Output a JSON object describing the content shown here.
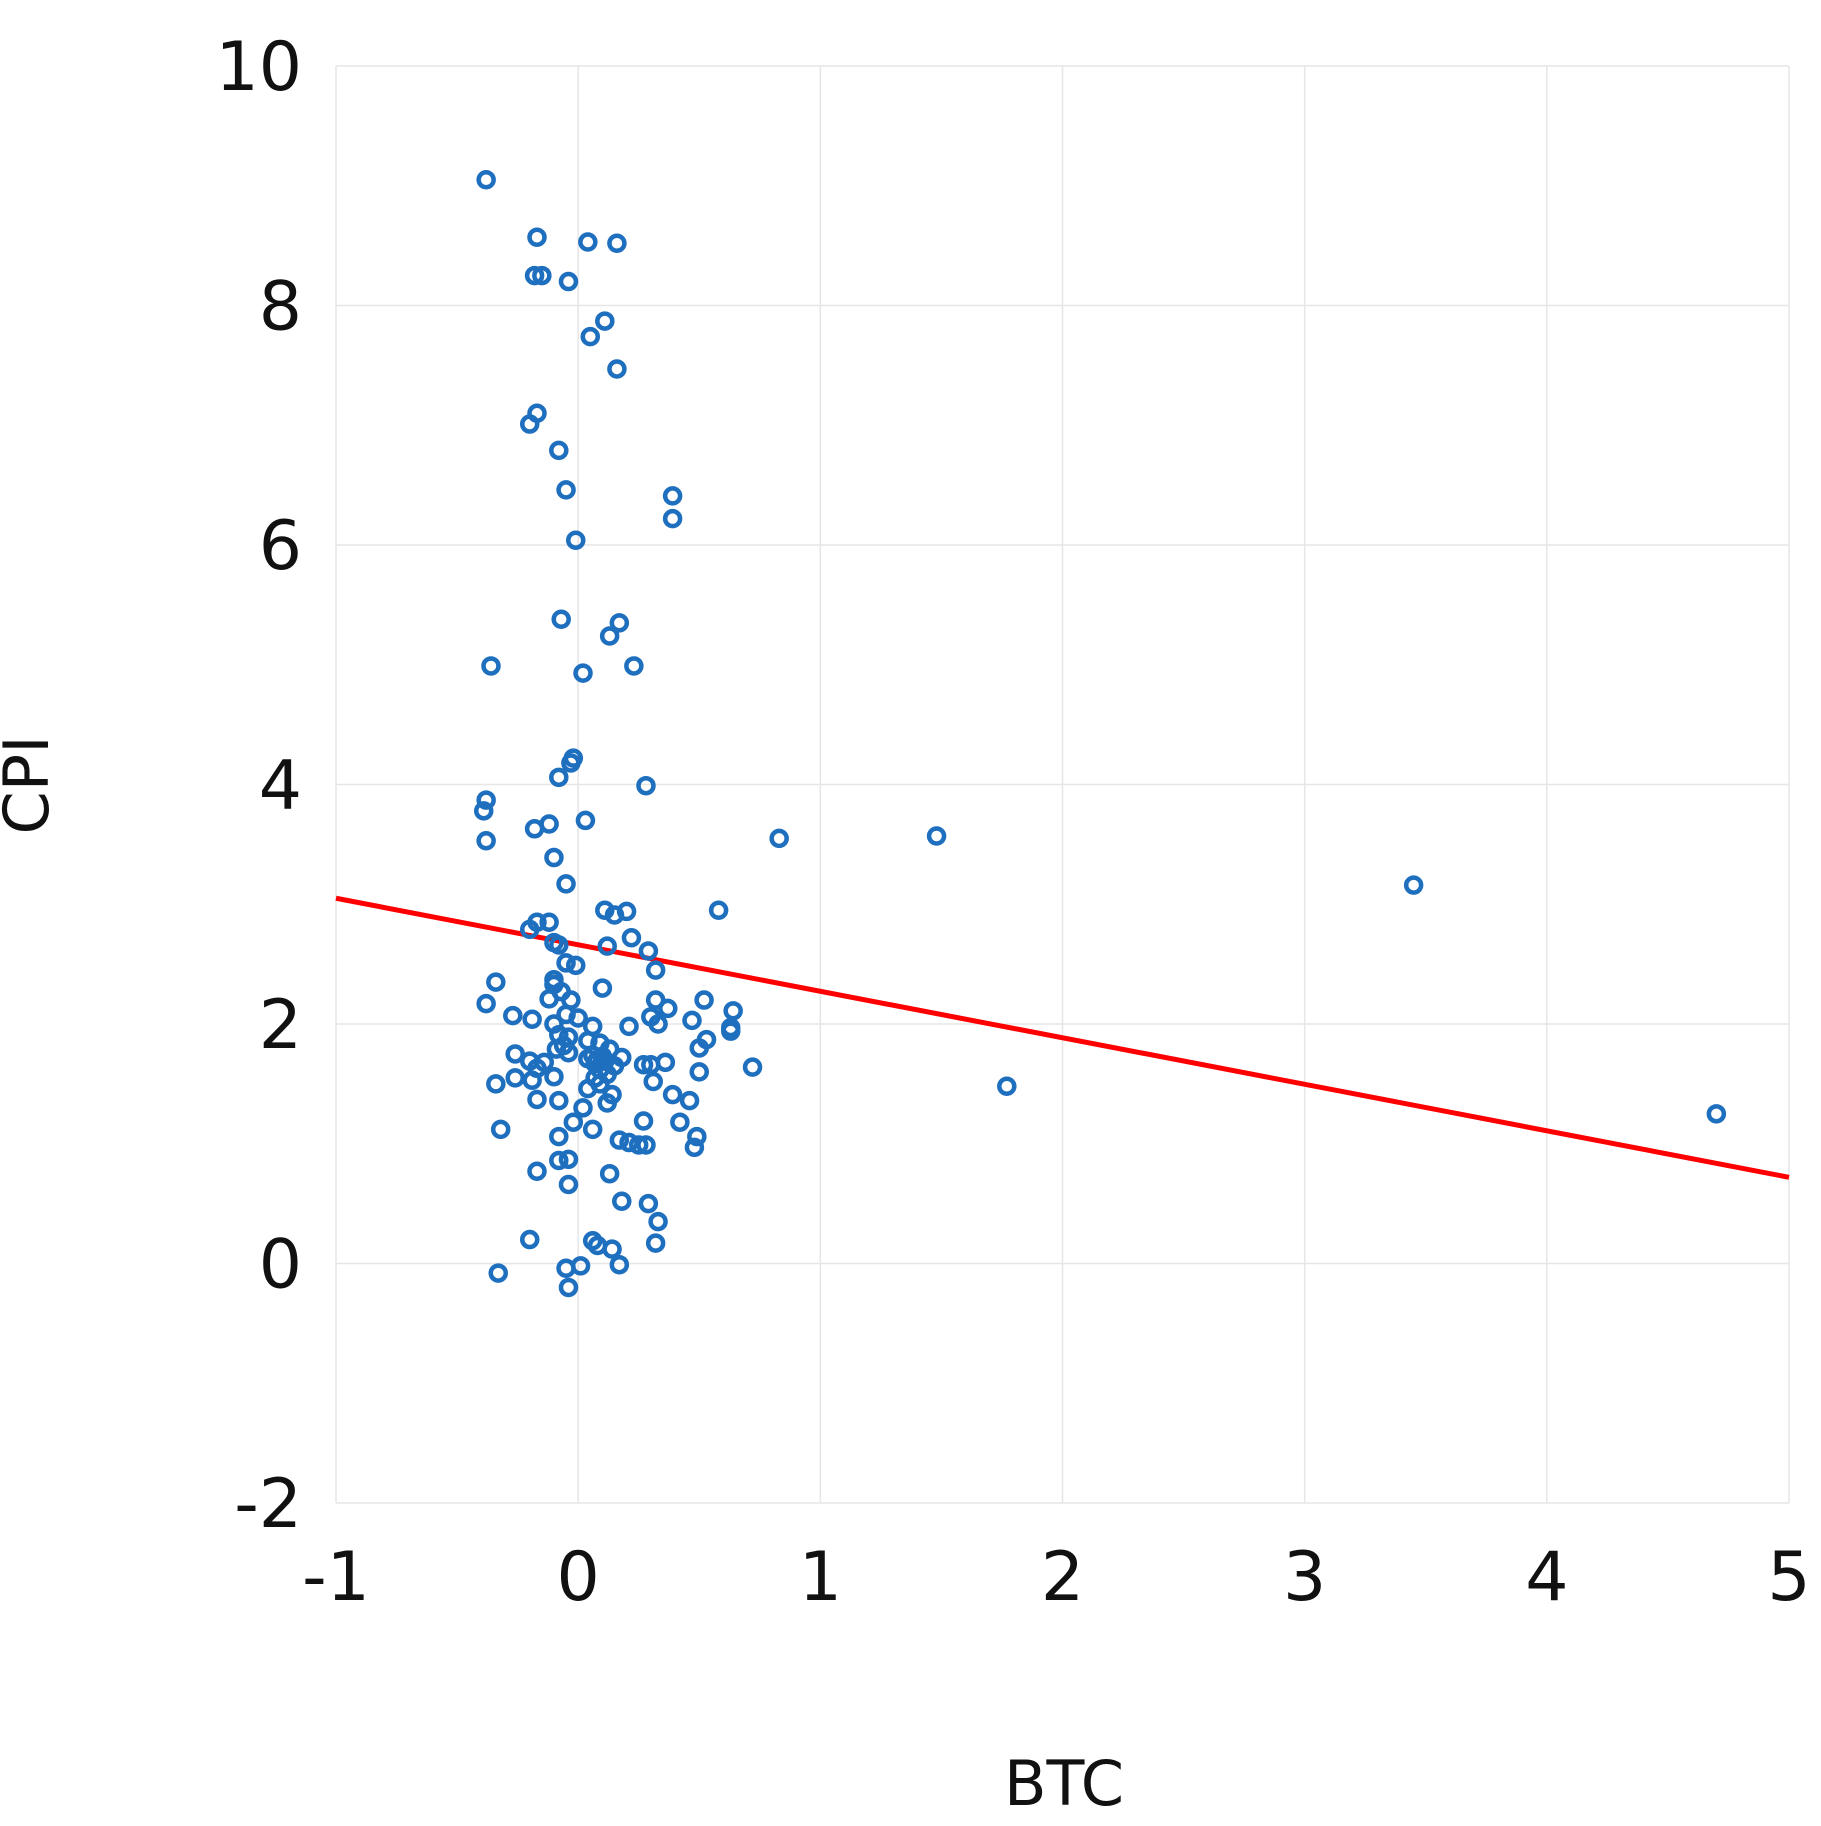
{
  "chart_data": {
    "type": "scatter",
    "title": "",
    "xlabel": "BTC",
    "ylabel": "CPI",
    "xlim": [
      -1,
      5
    ],
    "ylim": [
      -2,
      10
    ],
    "xticks": [
      -1,
      0,
      1,
      2,
      3,
      4,
      5
    ],
    "yticks": [
      -2,
      0,
      2,
      4,
      6,
      8,
      10
    ],
    "grid": true,
    "legend": "none",
    "colors": {
      "points": "#1F6FBF",
      "trend": "#FF0000",
      "grid": "#E6E6E6"
    },
    "points": [
      {
        "x": -0.38,
        "y": 9.05
      },
      {
        "x": -0.17,
        "y": 8.57
      },
      {
        "x": 0.04,
        "y": 8.53
      },
      {
        "x": 0.16,
        "y": 8.52
      },
      {
        "x": -0.18,
        "y": 8.25
      },
      {
        "x": -0.15,
        "y": 8.25
      },
      {
        "x": -0.04,
        "y": 8.2
      },
      {
        "x": 0.11,
        "y": 7.87
      },
      {
        "x": 0.05,
        "y": 7.74
      },
      {
        "x": 0.16,
        "y": 7.47
      },
      {
        "x": -0.17,
        "y": 7.1
      },
      {
        "x": -0.2,
        "y": 7.01
      },
      {
        "x": -0.08,
        "y": 6.79
      },
      {
        "x": -0.05,
        "y": 6.46
      },
      {
        "x": 0.39,
        "y": 6.41
      },
      {
        "x": 0.39,
        "y": 6.22
      },
      {
        "x": -0.01,
        "y": 6.04
      },
      {
        "x": -0.07,
        "y": 5.38
      },
      {
        "x": 0.17,
        "y": 5.35
      },
      {
        "x": 0.13,
        "y": 5.24
      },
      {
        "x": -0.36,
        "y": 4.99
      },
      {
        "x": 0.23,
        "y": 4.99
      },
      {
        "x": 0.02,
        "y": 4.93
      },
      {
        "x": -0.02,
        "y": 4.22
      },
      {
        "x": -0.03,
        "y": 4.18
      },
      {
        "x": -0.08,
        "y": 4.06
      },
      {
        "x": 0.28,
        "y": 3.99
      },
      {
        "x": -0.38,
        "y": 3.87
      },
      {
        "x": -0.39,
        "y": 3.78
      },
      {
        "x": 0.03,
        "y": 3.7
      },
      {
        "x": -0.12,
        "y": 3.67
      },
      {
        "x": -0.18,
        "y": 3.63
      },
      {
        "x": -0.38,
        "y": 3.53
      },
      {
        "x": 0.83,
        "y": 3.55
      },
      {
        "x": 1.48,
        "y": 3.57
      },
      {
        "x": -0.1,
        "y": 3.39
      },
      {
        "x": -0.05,
        "y": 3.17
      },
      {
        "x": 3.45,
        "y": 3.16
      },
      {
        "x": 0.58,
        "y": 2.95
      },
      {
        "x": 0.11,
        "y": 2.95
      },
      {
        "x": 0.2,
        "y": 2.94
      },
      {
        "x": 0.15,
        "y": 2.91
      },
      {
        "x": -0.17,
        "y": 2.85
      },
      {
        "x": -0.12,
        "y": 2.85
      },
      {
        "x": -0.2,
        "y": 2.79
      },
      {
        "x": 0.22,
        "y": 2.72
      },
      {
        "x": -0.1,
        "y": 2.68
      },
      {
        "x": -0.08,
        "y": 2.66
      },
      {
        "x": 0.12,
        "y": 2.65
      },
      {
        "x": 0.29,
        "y": 2.61
      },
      {
        "x": -0.05,
        "y": 2.51
      },
      {
        "x": -0.01,
        "y": 2.49
      },
      {
        "x": 0.32,
        "y": 2.45
      },
      {
        "x": -0.34,
        "y": 2.35
      },
      {
        "x": -0.1,
        "y": 2.37
      },
      {
        "x": -0.1,
        "y": 2.33
      },
      {
        "x": 0.1,
        "y": 2.3
      },
      {
        "x": -0.07,
        "y": 2.27
      },
      {
        "x": -0.12,
        "y": 2.21
      },
      {
        "x": -0.03,
        "y": 2.2
      },
      {
        "x": 0.32,
        "y": 2.2
      },
      {
        "x": 0.52,
        "y": 2.2
      },
      {
        "x": -0.38,
        "y": 2.17
      },
      {
        "x": 0.37,
        "y": 2.13
      },
      {
        "x": 0.64,
        "y": 2.11
      },
      {
        "x": -0.05,
        "y": 2.08
      },
      {
        "x": -0.27,
        "y": 2.07
      },
      {
        "x": -0.19,
        "y": 2.04
      },
      {
        "x": 0.3,
        "y": 2.06
      },
      {
        "x": 0.47,
        "y": 2.03
      },
      {
        "x": 0.0,
        "y": 2.05
      },
      {
        "x": -0.1,
        "y": 2.0
      },
      {
        "x": 0.33,
        "y": 2.0
      },
      {
        "x": 0.21,
        "y": 1.98
      },
      {
        "x": 0.06,
        "y": 1.98
      },
      {
        "x": 0.63,
        "y": 1.97
      },
      {
        "x": 0.63,
        "y": 1.94
      },
      {
        "x": -0.08,
        "y": 1.91
      },
      {
        "x": -0.04,
        "y": 1.89
      },
      {
        "x": 0.53,
        "y": 1.87
      },
      {
        "x": 0.04,
        "y": 1.86
      },
      {
        "x": 0.09,
        "y": 1.84
      },
      {
        "x": -0.06,
        "y": 1.82
      },
      {
        "x": 0.5,
        "y": 1.8
      },
      {
        "x": -0.09,
        "y": 1.79
      },
      {
        "x": 0.13,
        "y": 1.79
      },
      {
        "x": -0.04,
        "y": 1.76
      },
      {
        "x": -0.26,
        "y": 1.75
      },
      {
        "x": 0.06,
        "y": 1.74
      },
      {
        "x": 0.1,
        "y": 1.73
      },
      {
        "x": 0.18,
        "y": 1.72
      },
      {
        "x": 0.04,
        "y": 1.71
      },
      {
        "x": 0.08,
        "y": 1.7
      },
      {
        "x": -0.2,
        "y": 1.69
      },
      {
        "x": 0.11,
        "y": 1.69
      },
      {
        "x": -0.14,
        "y": 1.68
      },
      {
        "x": 0.36,
        "y": 1.68
      },
      {
        "x": 0.07,
        "y": 1.67
      },
      {
        "x": 0.27,
        "y": 1.66
      },
      {
        "x": 0.3,
        "y": 1.66
      },
      {
        "x": 0.15,
        "y": 1.65
      },
      {
        "x": 0.72,
        "y": 1.64
      },
      {
        "x": -0.17,
        "y": 1.63
      },
      {
        "x": 0.09,
        "y": 1.62
      },
      {
        "x": 0.5,
        "y": 1.6
      },
      {
        "x": 0.12,
        "y": 1.58
      },
      {
        "x": -0.1,
        "y": 1.56
      },
      {
        "x": -0.26,
        "y": 1.55
      },
      {
        "x": 0.07,
        "y": 1.55
      },
      {
        "x": -0.19,
        "y": 1.53
      },
      {
        "x": 0.31,
        "y": 1.52
      },
      {
        "x": -0.34,
        "y": 1.5
      },
      {
        "x": 0.09,
        "y": 1.5
      },
      {
        "x": 1.77,
        "y": 1.48
      },
      {
        "x": 0.04,
        "y": 1.46
      },
      {
        "x": 0.14,
        "y": 1.41
      },
      {
        "x": 0.39,
        "y": 1.41
      },
      {
        "x": -0.17,
        "y": 1.37
      },
      {
        "x": -0.08,
        "y": 1.36
      },
      {
        "x": 0.46,
        "y": 1.36
      },
      {
        "x": 0.12,
        "y": 1.34
      },
      {
        "x": 0.02,
        "y": 1.3
      },
      {
        "x": 4.7,
        "y": 1.25
      },
      {
        "x": 0.27,
        "y": 1.19
      },
      {
        "x": 0.42,
        "y": 1.18
      },
      {
        "x": -0.02,
        "y": 1.18
      },
      {
        "x": -0.32,
        "y": 1.12
      },
      {
        "x": 0.06,
        "y": 1.12
      },
      {
        "x": -0.08,
        "y": 1.06
      },
      {
        "x": 0.49,
        "y": 1.06
      },
      {
        "x": 0.17,
        "y": 1.03
      },
      {
        "x": 0.21,
        "y": 1.01
      },
      {
        "x": 0.25,
        "y": 0.99
      },
      {
        "x": 0.28,
        "y": 0.99
      },
      {
        "x": 0.48,
        "y": 0.97
      },
      {
        "x": -0.04,
        "y": 0.87
      },
      {
        "x": -0.08,
        "y": 0.86
      },
      {
        "x": -0.17,
        "y": 0.77
      },
      {
        "x": 0.13,
        "y": 0.75
      },
      {
        "x": -0.04,
        "y": 0.66
      },
      {
        "x": 0.18,
        "y": 0.52
      },
      {
        "x": 0.29,
        "y": 0.5
      },
      {
        "x": 0.33,
        "y": 0.35
      },
      {
        "x": -0.2,
        "y": 0.2
      },
      {
        "x": 0.06,
        "y": 0.19
      },
      {
        "x": 0.08,
        "y": 0.15
      },
      {
        "x": 0.32,
        "y": 0.17
      },
      {
        "x": 0.14,
        "y": 0.12
      },
      {
        "x": 0.17,
        "y": -0.01
      },
      {
        "x": 0.01,
        "y": -0.02
      },
      {
        "x": -0.05,
        "y": -0.04
      },
      {
        "x": -0.33,
        "y": -0.08
      },
      {
        "x": -0.04,
        "y": -0.2
      }
    ],
    "trend_line": {
      "x": [
        -1,
        5
      ],
      "y": [
        3.05,
        0.72
      ]
    }
  }
}
